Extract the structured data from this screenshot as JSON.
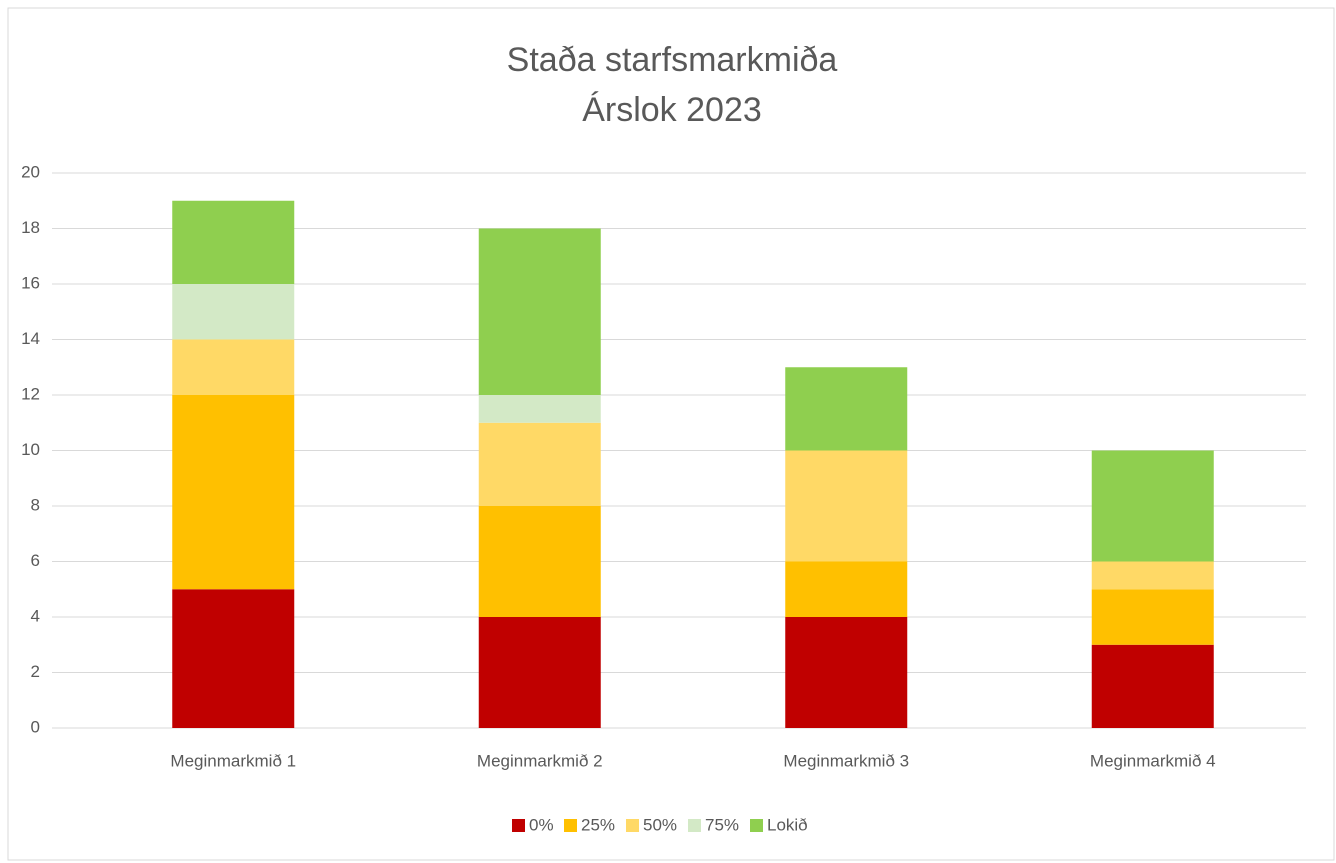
{
  "chart_data": {
    "type": "stacked_bar",
    "title": "Staða starfsmarkmiða",
    "subtitle": "Árslok 2023",
    "categories": [
      "Meginmarkmið 1",
      "Meginmarkmið 2",
      "Meginmarkmið 3",
      "Meginmarkmið 4"
    ],
    "series": [
      {
        "name": "0%",
        "color": "#c00000",
        "values": [
          5,
          4,
          4,
          3
        ]
      },
      {
        "name": "25%",
        "color": "#ffc000",
        "values": [
          7,
          4,
          2,
          2
        ]
      },
      {
        "name": "50%",
        "color": "#ffd966",
        "values": [
          2,
          3,
          4,
          1
        ]
      },
      {
        "name": "75%",
        "color": "#d3e9c6",
        "values": [
          2,
          1,
          0,
          0
        ]
      },
      {
        "name": "Lokið",
        "color": "#8fcf4f",
        "values": [
          3,
          6,
          3,
          4
        ]
      }
    ],
    "ylim": [
      0,
      20
    ],
    "yticks": [
      0,
      2,
      4,
      6,
      8,
      10,
      12,
      14,
      16,
      18,
      20
    ],
    "grid": true,
    "legend": "bottom"
  }
}
